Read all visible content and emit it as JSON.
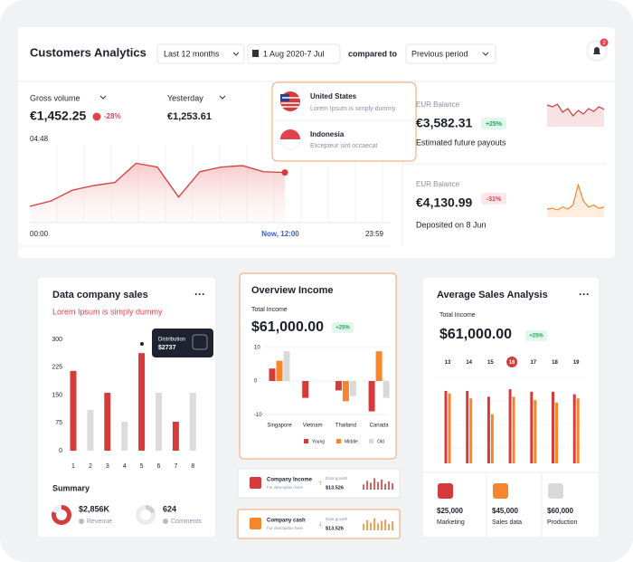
{
  "header": {
    "title": "Customers Analytics",
    "range": "Last 12 months",
    "date": "1 Aug 2020-7 Jul",
    "compare_label": "compared to",
    "compare": "Previous period",
    "notifications": 2
  },
  "gross": {
    "label": "Gross volume",
    "value": "€1,452.25",
    "change": "-28%",
    "yesterday_label": "Yesterday",
    "yesterday_value": "€1,253.61",
    "time": "04:48",
    "x_labels": [
      "00:00",
      "Now, 12:00",
      "23:59"
    ],
    "ylim": [
      0,
      100
    ],
    "values": [
      20,
      27,
      41,
      47,
      51,
      76,
      71,
      32,
      65,
      71,
      73,
      65,
      64
    ]
  },
  "countries": [
    {
      "name": "United States",
      "text": "Lorem Ipsum is simply dummy"
    },
    {
      "name": "Indonesia",
      "text": "Excepteur sint occaecat"
    }
  ],
  "balances": [
    {
      "label": "EUR Balance",
      "value": "€3,582.31",
      "change": "+25%",
      "note": "Estimated future payouts",
      "ylim": [
        0,
        100
      ],
      "trend": [
        60,
        55,
        62,
        40,
        50,
        30,
        45,
        35,
        50,
        42,
        55,
        48
      ]
    },
    {
      "label": "EUR Balance",
      "value": "€4,130.99",
      "change": "-31%",
      "note": "Deposited on 8 Jun",
      "ylim": [
        0,
        100
      ],
      "trend": [
        20,
        22,
        18,
        25,
        20,
        30,
        80,
        40,
        25,
        30,
        22,
        25
      ]
    }
  ],
  "sales_card": {
    "title": "Data company sales",
    "subtitle": "Lorem Ipsum is simply dummy",
    "chart": {
      "type": "bar",
      "categories": [
        "1",
        "2",
        "3",
        "4",
        "5",
        "6",
        "7",
        "8"
      ],
      "values": [
        215,
        110,
        156,
        78,
        263,
        156,
        78,
        156
      ],
      "colors": [
        "#d63b3b",
        "#dcdcdc",
        "#d63b3b",
        "#dcdcdc",
        "#d63b3b",
        "#dcdcdc",
        "#d63b3b",
        "#dcdcdc"
      ],
      "ylim": [
        0,
        300
      ],
      "yticks": [
        0,
        75,
        150,
        225,
        300
      ]
    },
    "tooltip": {
      "label": "Distribution",
      "value": "$2737"
    },
    "summary_title": "Summary",
    "summary": [
      {
        "value": "$2,856K",
        "label": "Revenue",
        "share": 80
      },
      {
        "value": "624",
        "label": "Comments",
        "share": 20
      }
    ]
  },
  "overview": {
    "title": "Overview Income",
    "total_label": "Total Income",
    "total": "$61,000.00",
    "change": "+25%",
    "chart": {
      "type": "bar",
      "categories": [
        "Singapore",
        "Vietnam",
        "Thailand",
        "Canada"
      ],
      "series": [
        {
          "name": "Young",
          "color": "#d63b3b",
          "values": [
            3.7,
            -5,
            -2.8,
            -9
          ]
        },
        {
          "name": "Middle",
          "color": "#f5862e",
          "values": [
            6,
            0,
            -6,
            8.8
          ]
        },
        {
          "name": "Old",
          "color": "#d9d9d9",
          "values": [
            8.8,
            0,
            -4.5,
            -5
          ]
        }
      ],
      "ylim": [
        -11,
        11
      ],
      "yticks": [
        -10,
        0,
        10
      ]
    }
  },
  "mini_cards": [
    {
      "title": "Company Income",
      "subtitle": "For description here",
      "growth_label": "Data growth",
      "value": "$13,526",
      "ylim": [
        0,
        100
      ],
      "bars": [
        40,
        70,
        55,
        90,
        60,
        80,
        45,
        65,
        50
      ]
    },
    {
      "title": "Company cash",
      "subtitle": "For description here",
      "growth_label": "Data growth",
      "value": "$13,526",
      "ylim": [
        0,
        100
      ],
      "bars": [
        50,
        80,
        60,
        95,
        55,
        75,
        85,
        50,
        70
      ]
    }
  ],
  "avg_sales": {
    "title": "Average Sales Analysis",
    "total_label": "Total Income",
    "total": "$61,000.00",
    "change": "+25%",
    "chart": {
      "type": "bar",
      "categories": [
        "13",
        "14",
        "15",
        "16",
        "17",
        "18",
        "19"
      ],
      "highlight": 3,
      "ylim": [
        0,
        100
      ],
      "series": [
        {
          "color": "#d63b3b",
          "values": [
            87,
            87,
            80,
            89,
            86,
            86,
            83
          ]
        },
        {
          "color": "#f5862e",
          "values": [
            84,
            78,
            59,
            80,
            76,
            73,
            78
          ]
        }
      ]
    },
    "items": [
      {
        "value": "$25,000",
        "label": "Marketing",
        "color": "#d63b3b"
      },
      {
        "value": "$45,000",
        "label": "Sales data",
        "color": "#f5862e"
      },
      {
        "value": "$60,000",
        "label": "Production",
        "color": "#d9d9d9"
      }
    ]
  }
}
